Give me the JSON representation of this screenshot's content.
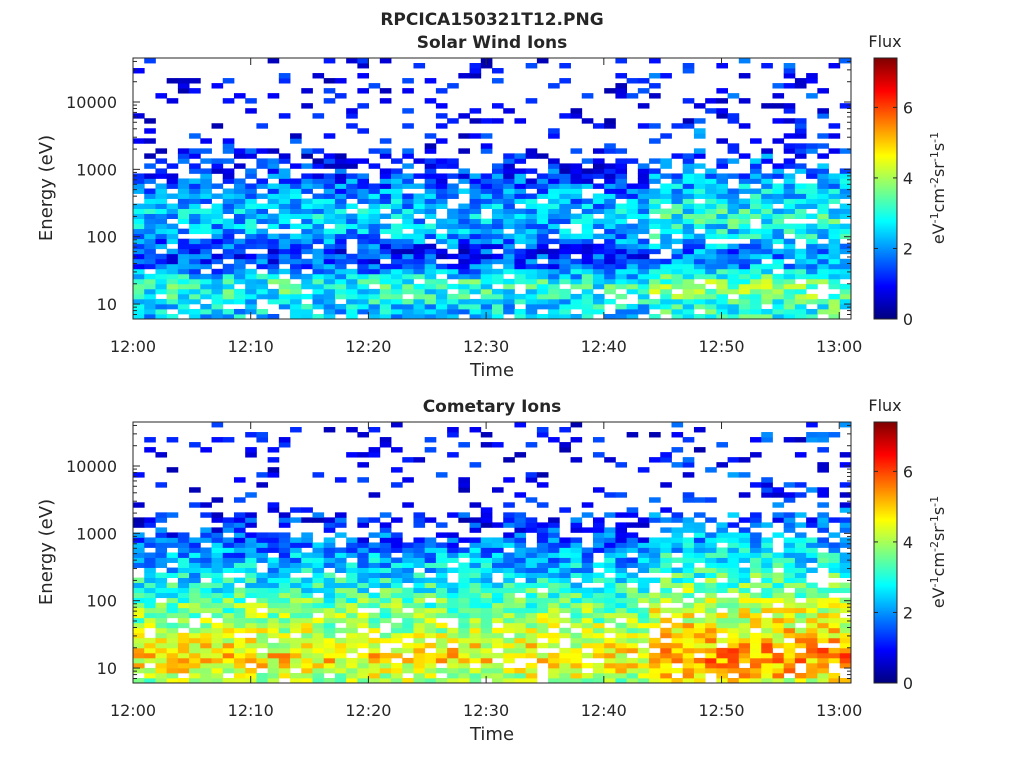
{
  "figure_title": "RPCICA150321T12.PNG",
  "colormap": [
    "#00007f",
    "#0000ff",
    "#007fff",
    "#00ffff",
    "#7fff7f",
    "#ffff00",
    "#ff7f00",
    "#ff0000",
    "#7f0000"
  ],
  "chart_data": [
    {
      "type": "heatmap",
      "title": "Solar Wind Ions",
      "xlabel": "Time",
      "ylabel": "Energy (eV)",
      "x_ticks": [
        "12:00",
        "12:10",
        "12:20",
        "12:30",
        "12:40",
        "12:50",
        "13:00"
      ],
      "xlim_minutes": [
        0,
        61
      ],
      "y_scale": "log",
      "ylim": [
        6,
        45000
      ],
      "y_ticks": [
        10,
        100,
        1000,
        10000
      ],
      "colorbar": {
        "title": "Flux",
        "label": "eV-1cm-2sr-1s-1",
        "range": [
          0,
          7.4
        ],
        "ticks": [
          0,
          2,
          4,
          6
        ]
      },
      "profile": [
        {
          "e": 6,
          "f": 2.3
        },
        {
          "e": 10,
          "f": 2.6
        },
        {
          "e": 15,
          "f": 3.0
        },
        {
          "e": 22,
          "f": 3.0
        },
        {
          "e": 35,
          "f": 1.6
        },
        {
          "e": 60,
          "f": 1.2
        },
        {
          "e": 100,
          "f": 2.0
        },
        {
          "e": 200,
          "f": 2.4
        },
        {
          "e": 400,
          "f": 2.0
        },
        {
          "e": 700,
          "f": 1.5
        },
        {
          "e": 1500,
          "f": 0.9
        },
        {
          "e": 5000,
          "f": 0.7
        },
        {
          "e": 40000,
          "f": 0.6
        }
      ]
    },
    {
      "type": "heatmap",
      "title": "Cometary Ions",
      "xlabel": "Time",
      "ylabel": "Energy (eV)",
      "x_ticks": [
        "12:00",
        "12:10",
        "12:20",
        "12:30",
        "12:40",
        "12:50",
        "13:00"
      ],
      "xlim_minutes": [
        0,
        61
      ],
      "y_scale": "log",
      "ylim": [
        6,
        45000
      ],
      "y_ticks": [
        10,
        100,
        1000,
        10000
      ],
      "colorbar": {
        "title": "Flux",
        "label": "eV-1cm-2sr-1s-1",
        "range": [
          0,
          7.4
        ],
        "ticks": [
          0,
          2,
          4,
          6
        ]
      },
      "profile": [
        {
          "e": 6,
          "f": 3.8
        },
        {
          "e": 10,
          "f": 4.6
        },
        {
          "e": 15,
          "f": 4.8
        },
        {
          "e": 25,
          "f": 4.4
        },
        {
          "e": 50,
          "f": 3.9
        },
        {
          "e": 100,
          "f": 3.4
        },
        {
          "e": 200,
          "f": 2.8
        },
        {
          "e": 400,
          "f": 2.2
        },
        {
          "e": 800,
          "f": 1.6
        },
        {
          "e": 1500,
          "f": 1.1
        },
        {
          "e": 3000,
          "f": 0.8
        },
        {
          "e": 15000,
          "f": 0.6
        }
      ]
    }
  ]
}
